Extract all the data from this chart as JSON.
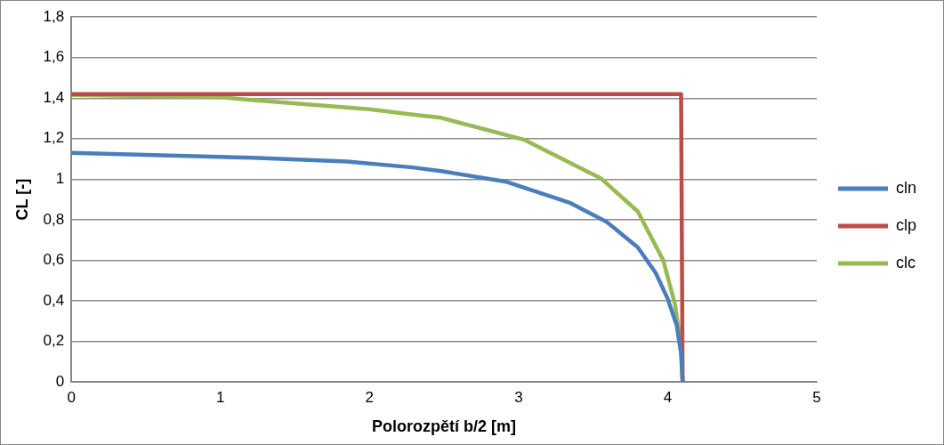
{
  "chart_data": {
    "type": "line",
    "xlabel": "Polorozpětí b/2 [m]",
    "ylabel": "CL [-]",
    "xlim": [
      0,
      5
    ],
    "xticks": [
      0,
      1,
      2,
      3,
      4,
      5
    ],
    "ylim": [
      0,
      1.8
    ],
    "yticks": [
      0,
      {
        "value": 0.2,
        "label": "0,2"
      },
      {
        "value": 0.4,
        "label": "0,4"
      },
      {
        "value": 0.6,
        "label": "0,6"
      },
      {
        "value": 0.8,
        "label": "0,8"
      },
      1,
      {
        "value": 1.2,
        "label": "1,2"
      },
      {
        "value": 1.4,
        "label": "1,4"
      },
      {
        "value": 1.6,
        "label": "1,6"
      },
      {
        "value": 1.8,
        "label": "1,8"
      }
    ],
    "grid": "y",
    "legend": "right",
    "marker": "none",
    "line_style": "solid",
    "series": [
      {
        "name": "cln",
        "color": "#4a7ebb",
        "x": [
          0,
          1.22,
          1.85,
          2.29,
          2.48,
          2.92,
          3.34,
          3.59,
          3.8,
          3.92,
          4.0,
          4.06,
          4.09,
          4.1
        ],
        "values": [
          1.13,
          1.106,
          1.087,
          1.058,
          1.04,
          0.987,
          0.885,
          0.79,
          0.663,
          0.537,
          0.41,
          0.28,
          0.14,
          0
        ]
      },
      {
        "name": "clp",
        "color": "#be4b48",
        "x": [
          0,
          4.09,
          4.1
        ],
        "values": [
          1.42,
          1.42,
          0
        ]
      },
      {
        "name": "clc",
        "color": "#98b954",
        "x": [
          0,
          1,
          1.22,
          2,
          2.29,
          2.48,
          3.04,
          3.55,
          3.8,
          3.97,
          4.05,
          4.09,
          4.1
        ],
        "values": [
          1.415,
          1.405,
          1.39,
          1.345,
          1.319,
          1.303,
          1.194,
          1.005,
          0.84,
          0.6,
          0.38,
          0.17,
          0
        ]
      }
    ]
  }
}
